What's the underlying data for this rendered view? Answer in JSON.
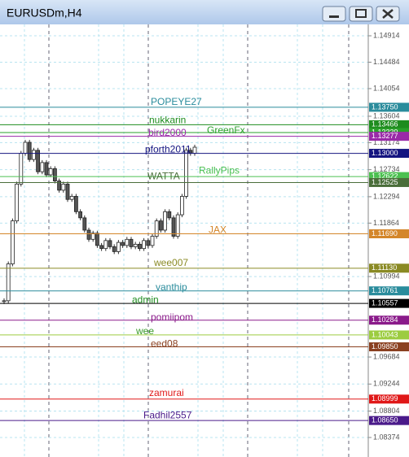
{
  "window": {
    "title": "EURUSDm,H4"
  },
  "price_axis": {
    "labels": [
      1.14914,
      1.14484,
      1.14054,
      1.13604,
      1.13174,
      1.12734,
      1.12294,
      1.11864,
      1.10994,
      1.09684,
      1.09244,
      1.08804,
      1.08374
    ]
  },
  "levels": [
    {
      "name": "POPEYE27",
      "price": {
        "value": 1.1375,
        "label": "1.13750"
      },
      "color": "#2a8c9c"
    },
    {
      "name": "nukkarin",
      "price": {
        "value": 1.13466,
        "label": "1.13466"
      },
      "color": "#1e8c1e"
    },
    {
      "name": "GreenFx",
      "price": {
        "value": 1.13339,
        "label": "1.13339"
      },
      "color": "#2aa02a"
    },
    {
      "name": "bird2000",
      "price": {
        "value": 1.13277,
        "label": "1.13277"
      },
      "color": "#9a2aa8"
    },
    {
      "name": "pforth2011",
      "price": {
        "value": 1.13,
        "label": "1.13000"
      },
      "color": "#141480"
    },
    {
      "name": "RallyPips",
      "price": {
        "value": 1.12622,
        "label": "1.12622"
      },
      "color": "#4cc050"
    },
    {
      "name": "WATTA",
      "price": {
        "value": 1.12525,
        "label": "1.12525"
      },
      "color": "#4a6e3a"
    },
    {
      "name": "JAX",
      "price": {
        "value": 1.1169,
        "label": "1.11690"
      },
      "color": "#d4862a"
    },
    {
      "name": "wee007",
      "price": {
        "value": 1.1113,
        "label": "1.11130"
      },
      "color": "#8a8a24"
    },
    {
      "name": "vanthip",
      "price": {
        "value": 1.10761,
        "label": "1.10761"
      },
      "color": "#2a8c9c"
    },
    {
      "name": "admin",
      "price": {
        "value": 1.10557,
        "label": "1.10557"
      },
      "color": "#000000",
      "text_color": "#1e8c1e"
    },
    {
      "name": "pomiipom",
      "price": {
        "value": 1.10284,
        "label": "1.10284"
      },
      "color": "#8a1a8a"
    },
    {
      "name": "wee",
      "price": {
        "value": 1.10043,
        "label": "1.10043"
      },
      "color": "#9ccc40",
      "text_color": "#3a9a2a"
    },
    {
      "name": "eed08",
      "price": {
        "value": 1.0985,
        "label": "1.09850"
      },
      "color": "#8a4020"
    },
    {
      "name": "zamurai",
      "price": {
        "value": 1.08999,
        "label": "1.08999"
      },
      "color": "#e01818"
    },
    {
      "name": "Fadhil2557",
      "price": {
        "value": 1.0865,
        "label": "1.08650"
      },
      "color": "#4a1a8a"
    }
  ],
  "candles": {
    "closes": [
      1.106,
      1.112,
      1.119,
      1.125,
      1.13,
      1.1318,
      1.129,
      1.1305,
      1.127,
      1.1285,
      1.1265,
      1.1275,
      1.1255,
      1.124,
      1.125,
      1.1225,
      1.123,
      1.1205,
      1.1195,
      1.1175,
      1.116,
      1.117,
      1.115,
      1.1145,
      1.1158,
      1.1148,
      1.114,
      1.1155,
      1.115,
      1.116,
      1.1148,
      1.1152,
      1.1145,
      1.1158,
      1.115,
      1.1165,
      1.119,
      1.1175,
      1.1205,
      1.1195,
      1.1165,
      1.12,
      1.123,
      1.1305,
      1.13,
      1.131
    ]
  }
}
